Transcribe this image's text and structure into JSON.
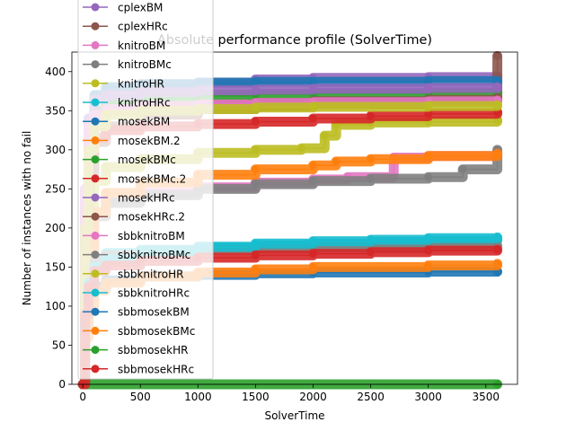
{
  "chart_data": {
    "type": "line",
    "title": "Absolute performance profile (SolverTime)",
    "xlabel": "SolverTime",
    "ylabel": "Number of instances with no fail",
    "xlim": [
      -95,
      3775
    ],
    "ylim": [
      0,
      425
    ],
    "xticks": [
      0,
      500,
      1000,
      1500,
      2000,
      2500,
      3000,
      3500
    ],
    "yticks": [
      0,
      50,
      100,
      150,
      200,
      250,
      300,
      350,
      400
    ],
    "grid": false,
    "legend_position": "upper-left",
    "series": [
      {
        "name": "cplexBM",
        "color": "#9467bd",
        "x": [
          0,
          20,
          50,
          100,
          200,
          500,
          1000,
          1500,
          2000,
          3000,
          3580,
          3600
        ],
        "y": [
          0,
          200,
          300,
          340,
          365,
          380,
          386,
          390,
          392,
          393,
          394,
          394
        ]
      },
      {
        "name": "cplexHRc",
        "color": "#8c564b",
        "x": [
          0,
          20,
          50,
          100,
          200,
          500,
          1000,
          1500,
          2000,
          3000,
          3580,
          3600
        ],
        "y": [
          0,
          170,
          270,
          310,
          330,
          345,
          352,
          356,
          359,
          362,
          364,
          420
        ]
      },
      {
        "name": "knitroBM",
        "color": "#e377c2",
        "x": [
          0,
          20,
          50,
          100,
          200,
          500,
          1000,
          1500,
          2000,
          2300,
          2700,
          3000,
          3600
        ],
        "y": [
          0,
          120,
          180,
          215,
          235,
          245,
          252,
          258,
          262,
          265,
          290,
          292,
          293
        ]
      },
      {
        "name": "knitroBMc",
        "color": "#7f7f7f",
        "x": [
          0,
          20,
          50,
          100,
          200,
          500,
          1000,
          1500,
          2000,
          2500,
          3000,
          3300,
          3600
        ],
        "y": [
          0,
          120,
          180,
          215,
          232,
          242,
          250,
          256,
          260,
          263,
          265,
          275,
          300
        ]
      },
      {
        "name": "knitroHR",
        "color": "#bcbd22",
        "x": [
          0,
          20,
          50,
          100,
          200,
          500,
          1000,
          1500,
          1900,
          2100,
          2200,
          2500,
          3000,
          3600
        ],
        "y": [
          0,
          150,
          220,
          260,
          278,
          288,
          296,
          300,
          302,
          318,
          332,
          335,
          336,
          338
        ]
      },
      {
        "name": "knitroHRc",
        "color": "#17becf",
        "x": [
          0,
          20,
          50,
          100,
          200,
          500,
          1000,
          1500,
          2000,
          2500,
          3000,
          3600
        ],
        "y": [
          0,
          90,
          140,
          160,
          168,
          172,
          175,
          178,
          180,
          182,
          184,
          186
        ]
      },
      {
        "name": "mosekBM",
        "color": "#1f77b4",
        "x": [
          0,
          20,
          50,
          100,
          200,
          500,
          1000,
          1500,
          2000,
          3000,
          3600
        ],
        "y": [
          0,
          250,
          340,
          370,
          380,
          384,
          386,
          387,
          387,
          388,
          388
        ]
      },
      {
        "name": "mosekBM.2",
        "color": "#ff7f0e",
        "x": [
          0,
          20,
          50,
          100,
          200,
          500,
          1000,
          1500,
          2000,
          2200,
          2500,
          3000,
          3600
        ],
        "y": [
          0,
          100,
          170,
          220,
          245,
          258,
          268,
          275,
          280,
          285,
          288,
          292,
          295
        ]
      },
      {
        "name": "mosekBMc",
        "color": "#2ca02c",
        "x": [
          0,
          20,
          50,
          100,
          200,
          500,
          1000,
          1500,
          2000,
          3000,
          3600
        ],
        "y": [
          0,
          230,
          320,
          350,
          360,
          366,
          369,
          371,
          372,
          373,
          374
        ]
      },
      {
        "name": "mosekBMc.2",
        "color": "#d62728",
        "x": [
          0,
          20,
          50,
          100,
          200,
          500,
          1000,
          1500,
          2000,
          2500,
          3000,
          3600
        ],
        "y": [
          0,
          200,
          290,
          315,
          325,
          330,
          333,
          336,
          340,
          343,
          346,
          348
        ]
      },
      {
        "name": "mosekHRc",
        "color": "#9467bd",
        "x": [
          0,
          20,
          50,
          100,
          200,
          500,
          1000,
          1500,
          2000,
          3000,
          3600
        ],
        "y": [
          0,
          250,
          340,
          365,
          370,
          374,
          376,
          377,
          378,
          379,
          380
        ]
      },
      {
        "name": "mosekHRc.2",
        "color": "#8c564b",
        "x": [
          0,
          20,
          50,
          100,
          200,
          500,
          1000,
          1500,
          2000,
          3000,
          3600
        ],
        "y": [
          0,
          220,
          310,
          340,
          350,
          355,
          358,
          360,
          362,
          364,
          366
        ]
      },
      {
        "name": "sbbknitroBM",
        "color": "#e377c2",
        "x": [
          0,
          20,
          50,
          100,
          200,
          500,
          1000,
          1500,
          2000,
          3000,
          3600
        ],
        "y": [
          0,
          250,
          330,
          345,
          352,
          356,
          358,
          360,
          361,
          362,
          363
        ]
      },
      {
        "name": "sbbknitroBMc",
        "color": "#7f7f7f",
        "x": [
          0,
          20,
          50,
          100,
          200,
          500,
          1000,
          1500,
          2000,
          3000,
          3600
        ],
        "y": [
          0,
          100,
          140,
          158,
          165,
          170,
          172,
          174,
          175,
          176,
          177
        ]
      },
      {
        "name": "sbbknitroHR",
        "color": "#bcbd22",
        "x": [
          0,
          20,
          50,
          100,
          200,
          500,
          1000,
          1500,
          2000,
          3000,
          3600
        ],
        "y": [
          0,
          200,
          300,
          330,
          345,
          350,
          352,
          354,
          355,
          356,
          357
        ]
      },
      {
        "name": "sbbknitroHRc",
        "color": "#17becf",
        "x": [
          0,
          20,
          50,
          100,
          200,
          500,
          1000,
          1500,
          2000,
          2500,
          3000,
          3600
        ],
        "y": [
          0,
          80,
          130,
          150,
          160,
          170,
          176,
          180,
          183,
          185,
          187,
          188
        ]
      },
      {
        "name": "sbbmosekBM",
        "color": "#1f77b4",
        "x": [
          0,
          20,
          50,
          100,
          200,
          500,
          1000,
          1500,
          2000,
          3000,
          3600
        ],
        "y": [
          0,
          80,
          110,
          125,
          133,
          138,
          140,
          142,
          143,
          144,
          144
        ]
      },
      {
        "name": "sbbmosekBMc",
        "color": "#ff7f0e",
        "x": [
          0,
          20,
          50,
          100,
          200,
          500,
          1000,
          1500,
          2000,
          3000,
          3600
        ],
        "y": [
          0,
          60,
          100,
          120,
          130,
          138,
          143,
          147,
          150,
          152,
          154
        ]
      },
      {
        "name": "sbbmosekHR",
        "color": "#2ca02c",
        "x": [
          0,
          3600
        ],
        "y": [
          0,
          0
        ]
      },
      {
        "name": "sbbmosekHRc",
        "color": "#d62728",
        "x": [
          0,
          20,
          50,
          100,
          200,
          500,
          1000,
          1500,
          2000,
          2500,
          3000,
          3600
        ],
        "y": [
          0,
          90,
          125,
          145,
          152,
          158,
          162,
          165,
          167,
          169,
          171,
          172
        ]
      }
    ]
  }
}
